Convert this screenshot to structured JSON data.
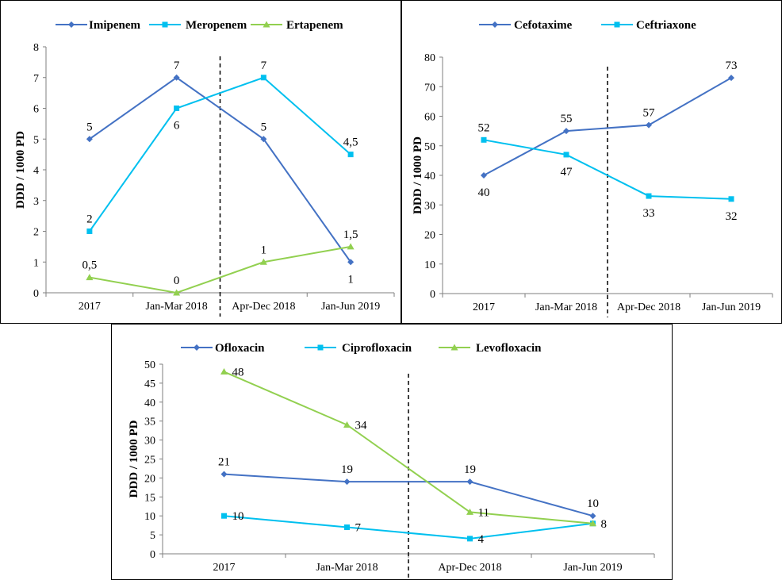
{
  "chart_data": [
    {
      "type": "line",
      "ylabel": "DDD / 1000 PD",
      "categories": [
        "2017",
        "Jan-Mar 2018",
        "Apr-Dec 2018",
        "Jan-Jun 2019"
      ],
      "ylim": [
        0,
        8
      ],
      "yticks": [
        "0",
        "1",
        "2",
        "3",
        "4",
        "5",
        "6",
        "7",
        "8"
      ],
      "legend_position": "top",
      "intervention_line_after_category": 1,
      "series": [
        {
          "name": "Imipenem",
          "color": "#4472C4",
          "marker": "diamond",
          "values": [
            5,
            7,
            5,
            1
          ],
          "labels": [
            "5",
            "7",
            "5",
            "1"
          ],
          "label_pos": [
            "above",
            "above",
            "above",
            "below"
          ]
        },
        {
          "name": "Meropenem",
          "color": "#00C0EF",
          "marker": "square",
          "values": [
            2,
            6,
            7,
            4.5
          ],
          "labels": [
            "2",
            "6",
            "7",
            "4,5"
          ],
          "label_pos": [
            "above",
            "below",
            "above",
            "above"
          ]
        },
        {
          "name": "Ertapenem",
          "color": "#92D050",
          "marker": "triangle",
          "values": [
            0.5,
            0,
            1,
            1.5
          ],
          "labels": [
            "0,5",
            "0",
            "1",
            "1,5"
          ],
          "label_pos": [
            "above",
            "above",
            "above",
            "above"
          ]
        }
      ]
    },
    {
      "type": "line",
      "ylabel": "DDD / 1000 PD",
      "categories": [
        "2017",
        "Jan-Mar 2018",
        "Apr-Dec 2018",
        "Jan-Jun 2019"
      ],
      "ylim": [
        0,
        80
      ],
      "yticks": [
        "0",
        "10",
        "20",
        "30",
        "40",
        "50",
        "60",
        "70",
        "80"
      ],
      "legend_position": "top",
      "intervention_line_after_category": 1,
      "series": [
        {
          "name": "Cefotaxime",
          "color": "#4472C4",
          "marker": "diamond",
          "values": [
            40,
            55,
            57,
            73
          ],
          "labels": [
            "40",
            "55",
            "57",
            "73"
          ],
          "label_pos": [
            "below",
            "above",
            "above",
            "above"
          ]
        },
        {
          "name": "Ceftriaxone",
          "color": "#00C0EF",
          "marker": "square",
          "values": [
            52,
            47,
            33,
            32
          ],
          "labels": [
            "52",
            "47",
            "33",
            "32"
          ],
          "label_pos": [
            "above",
            "below",
            "below",
            "below"
          ]
        }
      ]
    },
    {
      "type": "line",
      "ylabel": "DDD / 1000 PD",
      "categories": [
        "2017",
        "Jan-Mar 2018",
        "Apr-Dec 2018",
        "Jan-Jun 2019"
      ],
      "ylim": [
        0,
        50
      ],
      "yticks": [
        "0",
        "5",
        "10",
        "15",
        "20",
        "25",
        "30",
        "35",
        "40",
        "45",
        "50"
      ],
      "legend_position": "top",
      "intervention_line_after_category": 1,
      "series": [
        {
          "name": "Ofloxacin",
          "color": "#4472C4",
          "marker": "diamond",
          "values": [
            21,
            19,
            19,
            10
          ],
          "labels": [
            "21",
            "19",
            "19",
            "10"
          ],
          "label_pos": [
            "above",
            "above",
            "above",
            "above"
          ]
        },
        {
          "name": "Ciprofloxacin",
          "color": "#00C0EF",
          "marker": "square",
          "values": [
            10,
            7,
            4,
            8
          ],
          "labels": [
            "10",
            "7",
            "4",
            ""
          ],
          "label_pos": [
            "right",
            "right",
            "right",
            "right"
          ]
        },
        {
          "name": "Levofloxacin",
          "color": "#92D050",
          "marker": "triangle",
          "values": [
            48,
            34,
            11,
            8
          ],
          "labels": [
            "48",
            "34",
            "11",
            "8"
          ],
          "label_pos": [
            "right",
            "right",
            "right",
            "right"
          ]
        }
      ]
    }
  ]
}
